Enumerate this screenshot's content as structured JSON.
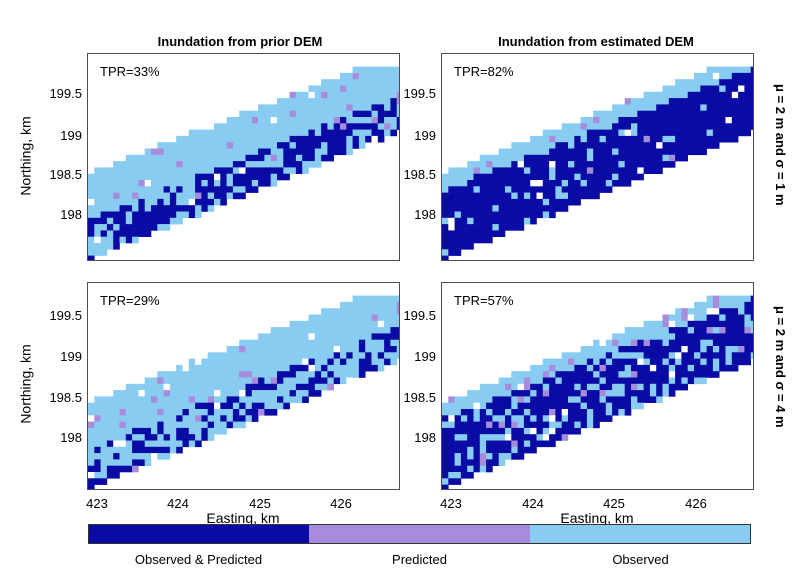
{
  "columns": [
    "Inundation from prior DEM",
    "Inundation from estimated DEM"
  ],
  "rows": [
    "μ = 2 m and σ = 1 m",
    "μ = 2 m and σ = 4 m"
  ],
  "axes": {
    "ylabel": "Northing, km",
    "xlabel": "Easting, km",
    "yticks": [
      "199.5",
      "199",
      "198.5",
      "198"
    ],
    "xticks": [
      "423",
      "424",
      "425",
      "426"
    ]
  },
  "legend": {
    "items": [
      {
        "label": "Observed & Predicted",
        "color": "#0a0aa4"
      },
      {
        "label": "Predicted",
        "color": "#a88cdc"
      },
      {
        "label": "Observed",
        "color": "#88ccf2"
      }
    ]
  },
  "chart_data": {
    "type": "heatmap",
    "categories": [
      "Observed & Predicted",
      "Predicted",
      "Observed"
    ],
    "xlim": [
      422.95,
      426.7
    ],
    "ylim": [
      197.6,
      199.95
    ],
    "panels": [
      {
        "row": "μ = 2 m and σ = 1 m",
        "column": "Inundation from prior DEM",
        "tpr": "TPR=33%"
      },
      {
        "row": "μ = 2 m and σ = 1 m",
        "column": "Inundation from estimated DEM",
        "tpr": "TPR=82%"
      },
      {
        "row": "μ = 2 m and σ = 4 m",
        "column": "Inundation from prior DEM",
        "tpr": "TPR=29%"
      },
      {
        "row": "μ = 2 m and σ = 4 m",
        "column": "Inundation from estimated DEM",
        "tpr": "TPR=57%"
      }
    ]
  }
}
